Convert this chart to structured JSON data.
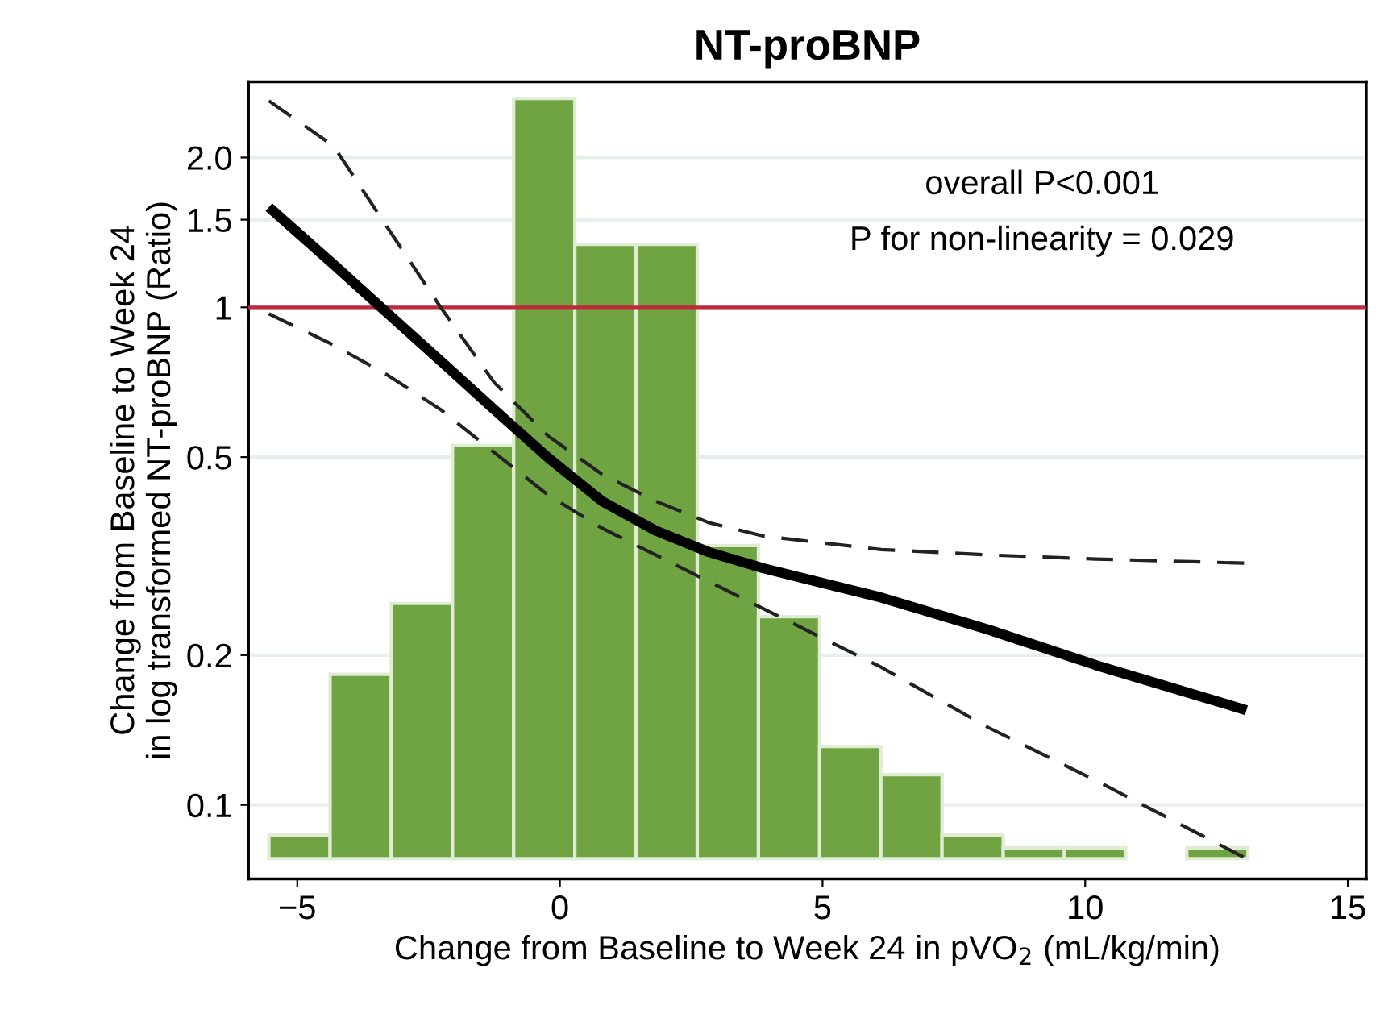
{
  "chart_data": {
    "type": "line",
    "title": "NT-proBNP",
    "xlabel": "Change from Baseline to Week 24 in pVO$_{2}$ (mL/kg/min)",
    "ylabel": "Change from Baseline to Week 24\nin log transformed NT-proBNP (Ratio)",
    "log": "y",
    "grid": "y",
    "xlim": [
      -5.93,
      15.35
    ],
    "ylim": [
      0.071,
      2.84
    ],
    "xticks": [
      {
        "value": -5,
        "label": "−5"
      },
      0,
      5,
      10,
      15
    ],
    "yticks": [
      0.1,
      0.2,
      0.5,
      1,
      1.5,
      {
        "value": 2,
        "label": "2.0"
      }
    ],
    "ref_lines": [
      {
        "axis": "y",
        "value": 1,
        "color": "#c0283c"
      }
    ],
    "annotations": [
      "overall P<0.001",
      "P for non-linearity = 0.029"
    ],
    "series": [
      {
        "type": "histogram",
        "color": "#70a342",
        "bins": [
          -5.54,
          -4.375,
          -3.21,
          -2.045,
          -0.88,
          0.285,
          1.45,
          2.615,
          3.78,
          4.945,
          6.11,
          7.275,
          8.44,
          9.605,
          10.77,
          11.935,
          13.1
        ],
        "base": [
          0.078,
          0.078,
          0.078,
          0.078,
          0.078,
          0.078,
          0.078,
          0.078,
          0.078,
          0.078,
          0.078,
          0.078,
          0.078,
          0.078,
          null,
          0.078
        ],
        "values": [
          0.009,
          0.105,
          0.176,
          0.45,
          2.55,
          1.26,
          1.26,
          0.254,
          0.161,
          0.053,
          0.037,
          0.009,
          0.004,
          0.004,
          null,
          0.004
        ]
      },
      {
        "color": "#000000",
        "line_style": "solid",
        "x": [
          -5.54,
          -4.31,
          -3.29,
          -2.27,
          -1.25,
          -0.22,
          0.8,
          1.82,
          2.84,
          3.87,
          6.12,
          8.16,
          10.2,
          13.07
        ],
        "values": [
          1.59,
          1.22,
          0.975,
          0.78,
          0.623,
          0.498,
          0.408,
          0.356,
          0.322,
          0.299,
          0.261,
          0.225,
          0.191,
          0.155
        ]
      },
      {
        "color": "#222222",
        "line_style": "dashed",
        "x": [
          -5.54,
          -4.31,
          -3.29,
          -2.27,
          -1.25,
          -0.22,
          0.8,
          1.82,
          2.84,
          3.87,
          6.12,
          8.16,
          10.2,
          13.07
        ],
        "values": [
          0.97,
          0.84,
          0.732,
          0.623,
          0.511,
          0.419,
          0.36,
          0.318,
          0.281,
          0.248,
          0.189,
          0.143,
          0.112,
          0.078
        ]
      },
      {
        "color": "#222222",
        "line_style": "dashed",
        "x": [
          -5.54,
          -4.31,
          -3.29,
          -2.27,
          -1.25,
          -0.22,
          0.8,
          1.82,
          2.84,
          3.87,
          6.12,
          8.16,
          10.2,
          13.07
        ],
        "values": [
          2.6,
          2.11,
          1.45,
          1.0,
          0.706,
          0.551,
          0.462,
          0.408,
          0.369,
          0.347,
          0.326,
          0.318,
          0.312,
          0.306
        ]
      }
    ]
  }
}
